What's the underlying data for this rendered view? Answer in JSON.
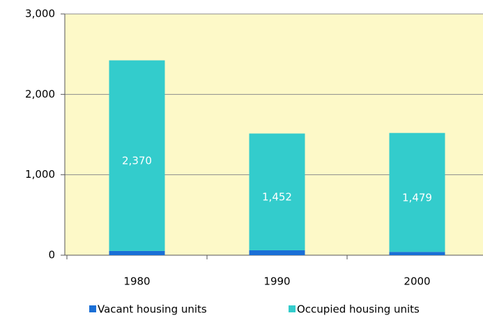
{
  "chart_data": {
    "type": "stacked_bar",
    "categories": [
      "1980",
      "1990",
      "2000"
    ],
    "series": [
      {
        "name": "Vacant housing units",
        "color": "#1a6fd6",
        "values": [
          53,
          61,
          41
        ]
      },
      {
        "name": "Occupied housing units",
        "color": "#33cccc",
        "values": [
          2370,
          1452,
          1479
        ],
        "value_labels": [
          "2,370",
          "1,452",
          "1,479"
        ]
      }
    ],
    "ylim": [
      0,
      3000
    ],
    "yticks": [
      0,
      {
        "value": 1000,
        "label": "1,000"
      },
      {
        "value": 2000,
        "label": "2,000"
      },
      {
        "value": 3000,
        "label": "3,000"
      }
    ],
    "grid": true,
    "legend": "bottom"
  }
}
